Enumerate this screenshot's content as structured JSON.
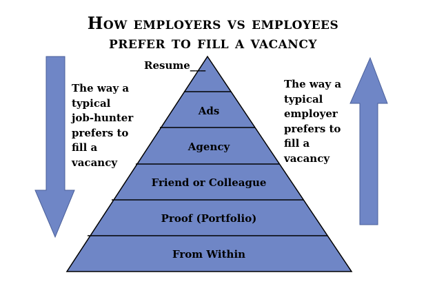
{
  "title": {
    "line1": "How employers vs employees",
    "line2": "prefer to fill a vacancy"
  },
  "pyramid": {
    "fill_color": "#6f86c6",
    "outline_color": "#000000",
    "tiers": [
      {
        "label": "Resume___"
      },
      {
        "label": "Ads"
      },
      {
        "label": "Agency"
      },
      {
        "label": "Friend or Colleague"
      },
      {
        "label": "Proof (Portfolio)"
      },
      {
        "label": "From Within"
      }
    ]
  },
  "left_side": {
    "arrow_direction": "down",
    "arrow_color": "#6f86c6",
    "text": "The way a\ntypical\njob-hunter\nprefers to\nfill a\nvacancy"
  },
  "right_side": {
    "arrow_direction": "up",
    "arrow_color": "#6f86c6",
    "text": "The way a\ntypical\nemployer\nprefers to\nfill a\nvacancy"
  }
}
